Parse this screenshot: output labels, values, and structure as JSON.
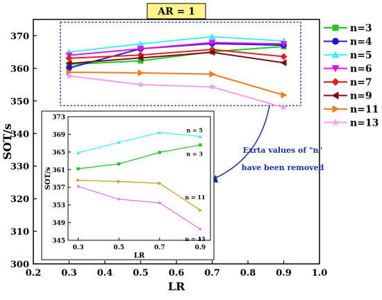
{
  "chart_data": [
    {
      "type": "line",
      "title": "AR = 1",
      "xlabel": "LR",
      "ylabel": "SOT/s",
      "xlim": [
        0.2,
        1.0
      ],
      "ylim": [
        300,
        375
      ],
      "xticks": [
        0.2,
        0.3,
        0.4,
        0.5,
        0.6,
        0.7,
        0.8,
        0.9,
        1.0
      ],
      "xtick_labels": [
        "0.2",
        "0.3",
        "0.4",
        "0.5",
        "0.6",
        "0.7",
        "0.8",
        "0.9",
        "1.0"
      ],
      "yticks": [
        300,
        310,
        320,
        330,
        340,
        350,
        360,
        370
      ],
      "ytick_labels": [
        "300",
        "310",
        "320",
        "330",
        "340",
        "350",
        "360",
        "370"
      ],
      "x": [
        0.3,
        0.5,
        0.7,
        0.9
      ],
      "legend_position": "right",
      "grid": false,
      "series": [
        {
          "name": "n=3",
          "color": "#22c322",
          "marker": "square",
          "values": [
            361.2,
            362.3,
            365.1,
            366.7
          ]
        },
        {
          "name": "n=4",
          "color": "#1a1ad6",
          "marker": "circle",
          "values": [
            360.1,
            366.0,
            367.6,
            367.1
          ]
        },
        {
          "name": "n=5",
          "color": "#3ff0f0",
          "marker": "triangle-up",
          "values": [
            365.0,
            367.5,
            369.7,
            368.4
          ]
        },
        {
          "name": "n=6",
          "color": "#e214e2",
          "marker": "triangle-down",
          "values": [
            364.0,
            366.0,
            367.9,
            367.5
          ]
        },
        {
          "name": "n=7",
          "color": "#e21f1f",
          "marker": "diamond",
          "values": [
            363.1,
            364.1,
            365.8,
            363.6
          ]
        },
        {
          "name": "n=9",
          "color": "#7a0d0d",
          "marker": "triangle-left",
          "values": [
            361.5,
            363.2,
            364.9,
            361.7
          ]
        },
        {
          "name": "n=11",
          "color": "#f07a1f",
          "marker": "triangle-right",
          "values": [
            358.8,
            358.6,
            358.2,
            351.8
          ]
        },
        {
          "name": "n=13",
          "color": "#f0a0f0",
          "marker": "star",
          "values": [
            357.7,
            355.0,
            354.3,
            348.0
          ]
        }
      ],
      "annotation": "Exrta values of \"n\" have been removed"
    },
    {
      "type": "line",
      "xlabel": "LR",
      "ylabel": "SOT/s",
      "xlim": [
        0.25,
        0.95
      ],
      "ylim": [
        345,
        373
      ],
      "xticks": [
        0.3,
        0.5,
        0.7,
        0.9
      ],
      "xtick_labels": [
        "0.3",
        "0.5",
        "0.7",
        "0.9"
      ],
      "yticks": [
        345,
        349,
        353,
        357,
        361,
        365,
        369,
        373
      ],
      "ytick_labels": [
        "345",
        "349",
        "353",
        "357",
        "361",
        "365",
        "369",
        "373"
      ],
      "x": [
        0.3,
        0.5,
        0.7,
        0.9
      ],
      "series": [
        {
          "name": "n = 5",
          "color": "#3ff0f0",
          "marker": "triangle-up",
          "values": [
            364.8,
            367.2,
            369.4,
            368.5
          ]
        },
        {
          "name": "n = 3",
          "color": "#22c322",
          "marker": "square",
          "values": [
            361.2,
            362.3,
            364.9,
            366.6
          ]
        },
        {
          "name": "n = 11",
          "color": "#c0a020",
          "marker": "triangle-right",
          "values": [
            358.6,
            358.3,
            357.9,
            351.8
          ]
        },
        {
          "name": "n = 13",
          "color": "#e070e0",
          "marker": "star",
          "values": [
            357.2,
            354.3,
            353.5,
            347.5
          ]
        }
      ]
    }
  ]
}
